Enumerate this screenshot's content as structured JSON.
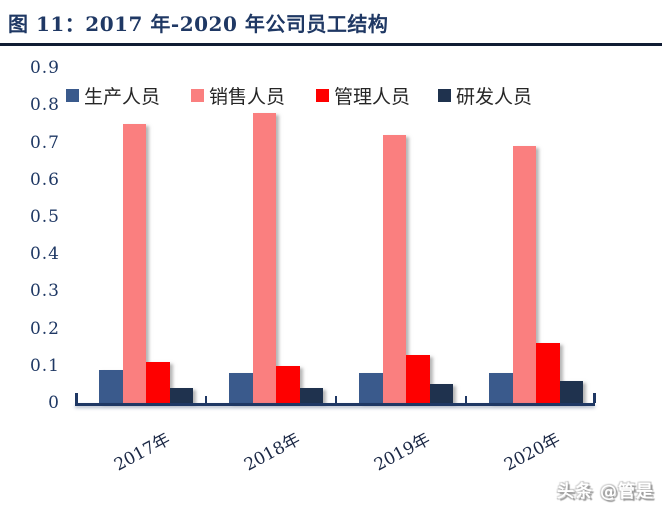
{
  "figure": {
    "title": "图 11：2017 年-2020 年公司员工结构",
    "watermark": "头条 @管是"
  },
  "colors": {
    "title_text": "#1F3864",
    "title_underline": "#101C33",
    "axis": "#1F3864",
    "y_tick_label": "#1F3864",
    "x_tick_label": "#1B2845",
    "legend_text": "#262626",
    "background": "#FFFFFF"
  },
  "chart_data": {
    "type": "bar",
    "title": "2017 年-2020 年公司员工结构",
    "categories": [
      "2017年",
      "2018年",
      "2019年",
      "2020年"
    ],
    "series": [
      {
        "name": "生产人员",
        "color": "#3A5A8C",
        "values": [
          0.09,
          0.08,
          0.08,
          0.08
        ]
      },
      {
        "name": "销售人员",
        "color": "#FA7F7F",
        "values": [
          0.75,
          0.78,
          0.72,
          0.69
        ]
      },
      {
        "name": "管理人员",
        "color": "#FE0000",
        "values": [
          0.11,
          0.1,
          0.13,
          0.16
        ]
      },
      {
        "name": "研发人员",
        "color": "#1F324E",
        "values": [
          0.04,
          0.04,
          0.05,
          0.06
        ]
      }
    ],
    "xlabel": "",
    "ylabel": "",
    "ylim": [
      0,
      0.9
    ],
    "ytick_step": 0.1,
    "yticks": [
      "0",
      "0.1",
      "0.2",
      "0.3",
      "0.4",
      "0.5",
      "0.6",
      "0.7",
      "0.8",
      "0.9"
    ],
    "legend_position": "top",
    "grid": false
  }
}
